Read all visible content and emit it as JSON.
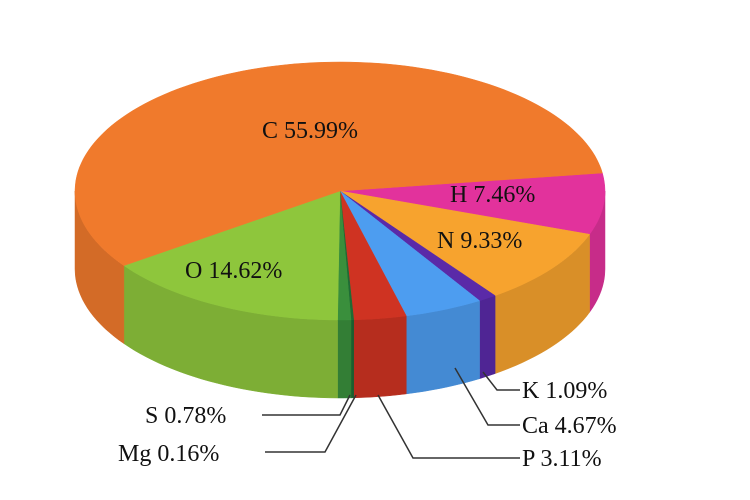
{
  "chart_data": {
    "type": "pie",
    "style": "3d",
    "unit": "%",
    "slices": [
      {
        "label": "H",
        "value": 7.46,
        "color": "#e2329c"
      },
      {
        "label": "N",
        "value": 9.33,
        "color": "#f7a32e"
      },
      {
        "label": "K",
        "value": 1.09,
        "color": "#5a2aa8"
      },
      {
        "label": "Ca",
        "value": 4.67,
        "color": "#4d9df0"
      },
      {
        "label": "P",
        "value": 3.11,
        "color": "#cf3322"
      },
      {
        "label": "Mg",
        "value": 0.16,
        "color": "#1f6b34"
      },
      {
        "label": "S",
        "value": 0.78,
        "color": "#3a8f3c"
      },
      {
        "label": "O",
        "value": 14.62,
        "color": "#8ec63c"
      },
      {
        "label": "C",
        "value": 55.99,
        "color": "#f07a2c"
      }
    ]
  }
}
